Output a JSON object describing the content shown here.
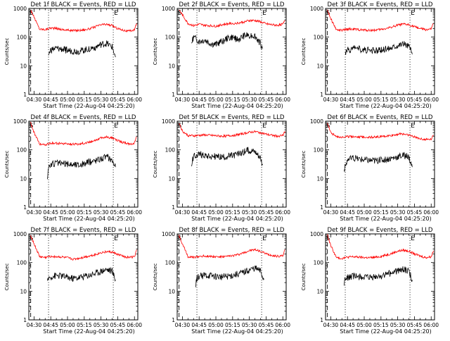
{
  "colors": {
    "events": "#000000",
    "lld": "#ff0000",
    "axis": "#000000",
    "background": "#ffffff"
  },
  "shared": {
    "ylabel": "Counts/sec",
    "xlabel": "Start Time (22-Aug-04 04:25:20)",
    "ytick_labels": [
      "1",
      "10",
      "100",
      "1000"
    ],
    "xtick_labels": [
      "04:30",
      "04:45",
      "05:00",
      "05:15",
      "05:30",
      "05:45",
      "06:00"
    ],
    "marker_s": "S",
    "marker_e": "E"
  },
  "chart_data": [
    {
      "type": "line",
      "title": "Det 1f BLACK = Events, RED = LLD",
      "yscale": "log",
      "ylim": [
        1,
        1000
      ],
      "xlim": [
        "04:25:20",
        "06:03"
      ],
      "grid": false,
      "vlines": [
        "04:27:00",
        "04:43:00",
        "05:41:00"
      ],
      "series": [
        {
          "name": "LLD",
          "color": "#ff0000",
          "x": [
            "04:27",
            "04:30",
            "04:35",
            "04:40",
            "04:45",
            "04:50",
            "04:55",
            "05:00",
            "05:05",
            "05:10",
            "05:15",
            "05:20",
            "05:25",
            "05:30",
            "05:35",
            "05:40",
            "05:45",
            "05:50",
            "05:55",
            "06:00",
            "06:02"
          ],
          "y": [
            900,
            500,
            190,
            185,
            210,
            200,
            185,
            175,
            170,
            172,
            180,
            195,
            230,
            270,
            280,
            250,
            200,
            175,
            160,
            180,
            300
          ]
        },
        {
          "name": "Events",
          "color": "#000000",
          "x": [
            "04:43",
            "04:45",
            "04:50",
            "04:55",
            "05:00",
            "05:05",
            "05:10",
            "05:15",
            "05:20",
            "05:25",
            "05:30",
            "05:35",
            "05:40",
            "05:43"
          ],
          "y": [
            25,
            36,
            40,
            38,
            34,
            33,
            32,
            35,
            40,
            45,
            55,
            60,
            45,
            20
          ]
        }
      ]
    },
    {
      "type": "line",
      "title": "Det 2f BLACK = Events, RED = LLD",
      "yscale": "log",
      "ylim": [
        1,
        1000
      ],
      "xlim": [
        "04:25:20",
        "06:03"
      ],
      "grid": false,
      "vlines": [
        "04:27:00",
        "04:43:00",
        "05:41:00"
      ],
      "series": [
        {
          "name": "LLD",
          "color": "#ff0000",
          "x": [
            "04:27",
            "04:30",
            "04:35",
            "04:40",
            "04:45",
            "04:50",
            "04:55",
            "05:00",
            "05:05",
            "05:10",
            "05:15",
            "05:20",
            "05:25",
            "05:30",
            "05:35",
            "05:40",
            "05:45",
            "05:50",
            "05:55",
            "06:00",
            "06:02"
          ],
          "y": [
            900,
            600,
            300,
            250,
            280,
            260,
            250,
            240,
            270,
            290,
            300,
            310,
            340,
            380,
            380,
            340,
            290,
            270,
            260,
            280,
            380
          ]
        },
        {
          "name": "Events",
          "color": "#000000",
          "x": [
            "04:38",
            "04:40",
            "04:45",
            "04:50",
            "04:55",
            "05:00",
            "05:05",
            "05:10",
            "05:15",
            "05:20",
            "05:25",
            "05:30",
            "05:35",
            "05:40",
            "05:42"
          ],
          "y": [
            60,
            100,
            70,
            80,
            60,
            55,
            70,
            90,
            100,
            80,
            110,
            120,
            110,
            60,
            40
          ]
        }
      ]
    },
    {
      "type": "line",
      "title": "Det 3f BLACK = Events, RED = LLD",
      "yscale": "log",
      "ylim": [
        1,
        1000
      ],
      "xlim": [
        "04:25:20",
        "06:03"
      ],
      "grid": false,
      "vlines": [
        "04:27:00",
        "04:43:00",
        "05:41:00"
      ],
      "series": [
        {
          "name": "LLD",
          "color": "#ff0000",
          "x": [
            "04:27",
            "04:30",
            "04:35",
            "04:40",
            "04:45",
            "04:50",
            "04:55",
            "05:00",
            "05:05",
            "05:10",
            "05:15",
            "05:20",
            "05:25",
            "05:30",
            "05:35",
            "05:40",
            "05:45",
            "05:50",
            "05:55",
            "06:00",
            "06:02"
          ],
          "y": [
            900,
            450,
            180,
            170,
            190,
            190,
            180,
            175,
            172,
            175,
            185,
            200,
            230,
            260,
            280,
            270,
            230,
            200,
            180,
            190,
            300
          ]
        },
        {
          "name": "Events",
          "color": "#000000",
          "x": [
            "04:43",
            "04:45",
            "04:50",
            "04:55",
            "05:00",
            "05:05",
            "05:10",
            "05:15",
            "05:20",
            "05:25",
            "05:30",
            "05:35",
            "05:40",
            "05:43"
          ],
          "y": [
            25,
            35,
            40,
            38,
            36,
            34,
            33,
            35,
            40,
            45,
            55,
            60,
            50,
            25
          ]
        }
      ]
    },
    {
      "type": "line",
      "title": "Det 4f BLACK = Events, RED = LLD",
      "yscale": "log",
      "ylim": [
        1,
        1000
      ],
      "xlim": [
        "04:25:20",
        "06:03"
      ],
      "grid": false,
      "vlines": [
        "04:27:00",
        "04:43:00",
        "05:41:00"
      ],
      "series": [
        {
          "name": "LLD",
          "color": "#ff0000",
          "x": [
            "04:27",
            "04:30",
            "04:35",
            "04:40",
            "04:45",
            "04:50",
            "04:55",
            "05:00",
            "05:05",
            "05:10",
            "05:15",
            "05:20",
            "05:25",
            "05:30",
            "05:35",
            "05:40",
            "05:45",
            "05:50",
            "05:55",
            "06:00",
            "06:02"
          ],
          "y": [
            900,
            400,
            160,
            150,
            170,
            170,
            165,
            160,
            158,
            160,
            170,
            190,
            220,
            260,
            280,
            260,
            210,
            180,
            160,
            170,
            280
          ]
        },
        {
          "name": "Events",
          "color": "#000000",
          "x": [
            "04:42",
            "04:43",
            "04:45",
            "04:50",
            "04:55",
            "05:00",
            "05:05",
            "05:10",
            "05:15",
            "05:20",
            "05:25",
            "05:30",
            "05:35",
            "05:40",
            "05:43"
          ],
          "y": [
            12,
            25,
            30,
            35,
            33,
            32,
            31,
            30,
            33,
            38,
            43,
            50,
            58,
            45,
            25
          ]
        }
      ]
    },
    {
      "type": "line",
      "title": "Det 5f BLACK = Events, RED = LLD",
      "yscale": "log",
      "ylim": [
        1,
        1000
      ],
      "xlim": [
        "04:25:20",
        "06:03"
      ],
      "grid": false,
      "vlines": [
        "04:27:00",
        "04:43:00",
        "05:41:00"
      ],
      "series": [
        {
          "name": "LLD",
          "color": "#ff0000",
          "x": [
            "04:27",
            "04:30",
            "04:35",
            "04:40",
            "04:45",
            "04:50",
            "04:55",
            "05:00",
            "05:05",
            "05:10",
            "05:15",
            "05:20",
            "05:25",
            "05:30",
            "05:35",
            "05:40",
            "05:45",
            "05:50",
            "05:55",
            "06:00",
            "06:02"
          ],
          "y": [
            900,
            450,
            320,
            310,
            320,
            330,
            320,
            310,
            300,
            305,
            320,
            340,
            370,
            410,
            430,
            400,
            350,
            320,
            300,
            320,
            450
          ]
        },
        {
          "name": "Events",
          "color": "#000000",
          "x": [
            "04:38",
            "04:40",
            "04:45",
            "04:50",
            "04:55",
            "05:00",
            "05:05",
            "05:10",
            "05:15",
            "05:20",
            "05:25",
            "05:30",
            "05:35",
            "05:40",
            "05:42"
          ],
          "y": [
            30,
            60,
            70,
            65,
            60,
            58,
            55,
            57,
            62,
            70,
            85,
            100,
            90,
            55,
            30
          ]
        }
      ]
    },
    {
      "type": "line",
      "title": "Det 6f BLACK = Events, RED = LLD",
      "yscale": "log",
      "ylim": [
        1,
        1000
      ],
      "xlim": [
        "04:25:20",
        "06:03"
      ],
      "grid": false,
      "vlines": [
        "04:27:00",
        "04:43:00",
        "05:41:00"
      ],
      "series": [
        {
          "name": "LLD",
          "color": "#ff0000",
          "x": [
            "04:27",
            "04:30",
            "04:35",
            "04:40",
            "04:45",
            "04:50",
            "04:55",
            "05:00",
            "05:05",
            "05:10",
            "05:15",
            "05:20",
            "05:25",
            "05:30",
            "05:35",
            "05:40",
            "05:45",
            "05:50",
            "05:55",
            "06:00",
            "06:02"
          ],
          "y": [
            900,
            400,
            290,
            280,
            290,
            295,
            285,
            280,
            275,
            280,
            290,
            300,
            320,
            350,
            360,
            330,
            280,
            250,
            230,
            240,
            330
          ]
        },
        {
          "name": "Events",
          "color": "#000000",
          "x": [
            "04:42",
            "04:45",
            "04:50",
            "04:55",
            "05:00",
            "05:05",
            "05:10",
            "05:15",
            "05:20",
            "05:25",
            "05:30",
            "05:35",
            "05:40",
            "05:43"
          ],
          "y": [
            20,
            45,
            50,
            48,
            45,
            43,
            42,
            44,
            48,
            52,
            58,
            65,
            55,
            25
          ]
        }
      ]
    },
    {
      "type": "line",
      "title": "Det 7f BLACK = Events, RED = LLD",
      "yscale": "log",
      "ylim": [
        1,
        1000
      ],
      "xlim": [
        "04:25:20",
        "06:03"
      ],
      "grid": false,
      "vlines": [
        "04:27:00",
        "04:43:00",
        "05:41:00"
      ],
      "series": [
        {
          "name": "LLD",
          "color": "#ff0000",
          "x": [
            "04:27",
            "04:30",
            "04:35",
            "04:40",
            "04:45",
            "04:50",
            "04:55",
            "05:00",
            "05:05",
            "05:10",
            "05:15",
            "05:20",
            "05:25",
            "05:30",
            "05:35",
            "05:40",
            "05:45",
            "05:50",
            "05:55",
            "06:00",
            "06:02"
          ],
          "y": [
            900,
            450,
            160,
            150,
            165,
            160,
            155,
            145,
            130,
            140,
            155,
            170,
            190,
            220,
            240,
            230,
            190,
            165,
            150,
            160,
            280
          ]
        },
        {
          "name": "Events",
          "color": "#000000",
          "x": [
            "04:42",
            "04:43",
            "04:45",
            "04:50",
            "04:55",
            "05:00",
            "05:05",
            "05:10",
            "05:15",
            "05:20",
            "05:25",
            "05:30",
            "05:35",
            "05:40",
            "05:43"
          ],
          "y": [
            20,
            28,
            32,
            35,
            34,
            30,
            28,
            30,
            33,
            37,
            42,
            50,
            58,
            50,
            25
          ]
        }
      ]
    },
    {
      "type": "line",
      "title": "Det 8f BLACK = Events, RED = LLD",
      "yscale": "log",
      "ylim": [
        1,
        1000
      ],
      "xlim": [
        "04:25:20",
        "06:03"
      ],
      "grid": false,
      "vlines": [
        "04:27:00",
        "04:43:00",
        "05:41:00"
      ],
      "series": [
        {
          "name": "LLD",
          "color": "#ff0000",
          "x": [
            "04:27",
            "04:30",
            "04:35",
            "04:40",
            "04:45",
            "04:50",
            "04:55",
            "05:00",
            "05:05",
            "05:10",
            "05:15",
            "05:20",
            "05:25",
            "05:30",
            "05:35",
            "05:40",
            "05:45",
            "05:50",
            "05:55",
            "06:00",
            "06:02"
          ],
          "y": [
            900,
            450,
            160,
            150,
            165,
            170,
            165,
            160,
            158,
            162,
            175,
            190,
            220,
            260,
            280,
            250,
            200,
            180,
            165,
            175,
            280
          ]
        },
        {
          "name": "Events",
          "color": "#000000",
          "x": [
            "04:42",
            "04:43",
            "04:45",
            "04:50",
            "04:55",
            "05:00",
            "05:05",
            "05:10",
            "05:15",
            "05:20",
            "05:25",
            "05:30",
            "05:35",
            "05:40",
            "05:43"
          ],
          "y": [
            18,
            28,
            33,
            36,
            35,
            33,
            32,
            33,
            36,
            40,
            46,
            55,
            65,
            50,
            25
          ]
        }
      ]
    },
    {
      "type": "line",
      "title": "Det 9f BLACK = Events, RED = LLD",
      "yscale": "log",
      "ylim": [
        1,
        1000
      ],
      "xlim": [
        "04:25:20",
        "06:03"
      ],
      "grid": false,
      "vlines": [
        "04:27:00",
        "04:43:00",
        "05:41:00"
      ],
      "series": [
        {
          "name": "LLD",
          "color": "#ff0000",
          "x": [
            "04:27",
            "04:30",
            "04:35",
            "04:40",
            "04:45",
            "04:50",
            "04:55",
            "05:00",
            "05:05",
            "05:10",
            "05:15",
            "05:20",
            "05:25",
            "05:30",
            "05:35",
            "05:40",
            "05:45",
            "05:50",
            "05:55",
            "06:00",
            "06:02"
          ],
          "y": [
            900,
            400,
            150,
            140,
            155,
            160,
            155,
            150,
            148,
            152,
            165,
            185,
            210,
            250,
            270,
            250,
            200,
            170,
            150,
            160,
            260
          ]
        },
        {
          "name": "Events",
          "color": "#000000",
          "x": [
            "04:42",
            "04:43",
            "04:45",
            "04:50",
            "04:55",
            "05:00",
            "05:05",
            "05:10",
            "05:15",
            "05:20",
            "05:25",
            "05:30",
            "05:35",
            "05:40",
            "05:43"
          ],
          "y": [
            18,
            26,
            30,
            33,
            32,
            30,
            29,
            31,
            34,
            38,
            44,
            52,
            60,
            48,
            25
          ]
        }
      ]
    }
  ]
}
